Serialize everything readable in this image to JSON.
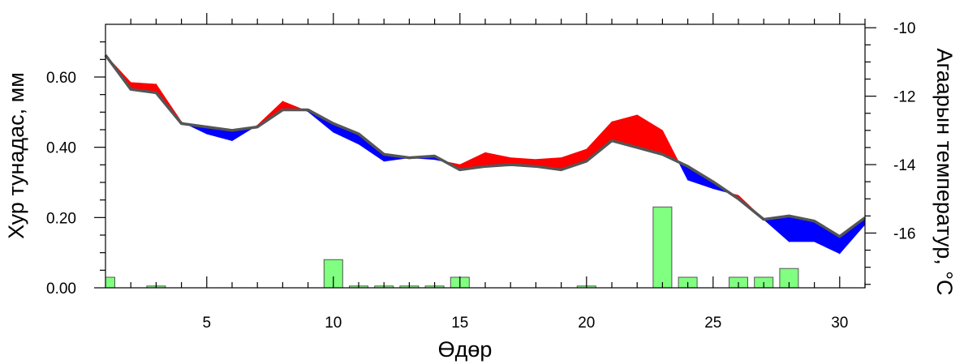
{
  "chart_data": {
    "type": "combo",
    "xlabel": "Өдөр",
    "ylabel_left": "Хур тунадас, мм",
    "ylabel_right": "Агаарын температур, °С",
    "xlim": [
      1,
      31
    ],
    "x_ticks": [
      5,
      10,
      15,
      20,
      25,
      30
    ],
    "ylim_left": [
      0,
      0.75
    ],
    "y_ticks_left": [
      "0.00",
      "0.20",
      "0.40",
      "0.60"
    ],
    "ylim_right": [
      -17.6,
      -9.9
    ],
    "y_ticks_right": [
      "-10",
      "-12",
      "-14",
      "-16"
    ],
    "grid": false,
    "legend": "none",
    "colors": {
      "bars": "#80ff80",
      "bar_edge": "#555555",
      "above": "#ff0000",
      "below": "#0000ff",
      "reference_line": "#555555"
    },
    "series": [
      {
        "type": "bar",
        "axis": "left",
        "x": [
          1,
          3,
          10,
          11,
          12,
          13,
          14,
          15,
          20,
          23,
          24,
          26,
          27,
          28
        ],
        "values": [
          0.03,
          0.005,
          0.08,
          0.005,
          0.005,
          0.005,
          0.005,
          0.03,
          0.005,
          0.23,
          0.03,
          0.03,
          0.03,
          0.055
        ]
      },
      {
        "type": "line",
        "axis": "right",
        "x": [
          1,
          2,
          3,
          4,
          5,
          6,
          7,
          8,
          9,
          10,
          11,
          12,
          13,
          14,
          15,
          16,
          17,
          18,
          19,
          20,
          21,
          22,
          23,
          24,
          25,
          26,
          27,
          28,
          29,
          30,
          31
        ],
        "values": [
          -10.8,
          -11.8,
          -11.9,
          -12.8,
          -12.9,
          -13.0,
          -12.9,
          -12.4,
          -12.4,
          -12.8,
          -13.1,
          -13.7,
          -13.8,
          -13.75,
          -14.15,
          -14.05,
          -14.0,
          -14.05,
          -14.15,
          -13.9,
          -13.3,
          -13.5,
          -13.7,
          -14.05,
          -14.5,
          -15.0,
          -15.6,
          -15.5,
          -15.65,
          -16.1,
          -15.55
        ]
      },
      {
        "type": "line",
        "axis": "right",
        "x": [
          1,
          2,
          3,
          4,
          5,
          6,
          7,
          8,
          9,
          10,
          11,
          12,
          13,
          14,
          15,
          16,
          17,
          18,
          19,
          20,
          21,
          22,
          23,
          24,
          25,
          26,
          27,
          28,
          29,
          30,
          31
        ],
        "values": [
          -10.8,
          -11.6,
          -11.65,
          -12.75,
          -13.1,
          -13.3,
          -12.85,
          -12.15,
          -12.45,
          -13.05,
          -13.4,
          -13.9,
          -13.8,
          -13.85,
          -14.0,
          -13.65,
          -13.8,
          -13.85,
          -13.8,
          -13.55,
          -12.75,
          -12.55,
          -13.0,
          -14.45,
          -14.7,
          -14.9,
          -15.6,
          -16.25,
          -16.25,
          -16.6,
          -15.75
        ]
      }
    ]
  }
}
